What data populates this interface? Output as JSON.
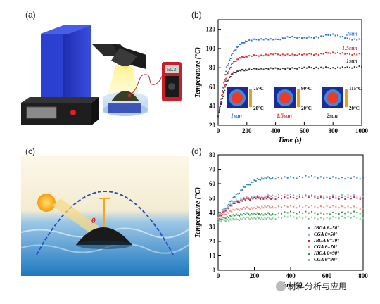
{
  "panel_labels": {
    "a": "(a)",
    "b": "(b)",
    "c": "(c)",
    "d": "(d)"
  },
  "illustration_a": {
    "meter_reading": "50.3"
  },
  "illustration_c": {
    "angle_symbol": "θ"
  },
  "watermark": "材料分析与应用",
  "chart_data": [
    {
      "type": "scatter",
      "title": "",
      "xlabel": "Time (s)",
      "ylabel": "Temperature (°C)",
      "xlim": [
        0,
        1000
      ],
      "ylim": [
        20,
        130
      ],
      "xticks": [
        0,
        200,
        400,
        600,
        800,
        1000
      ],
      "yticks": [
        20,
        40,
        60,
        80,
        100,
        120
      ],
      "series": [
        {
          "name": "2sun",
          "color": "#2f74d0",
          "x": [
            0,
            30,
            60,
            100,
            150,
            200,
            300,
            400,
            500,
            600,
            700,
            800,
            900,
            1000
          ],
          "y": [
            30,
            56,
            80,
            95,
            104,
            108,
            110,
            109,
            112,
            111,
            112,
            115,
            110,
            109
          ]
        },
        {
          "name": "1.5sun",
          "color": "#e0312f",
          "x": [
            0,
            30,
            60,
            100,
            150,
            200,
            300,
            400,
            500,
            600,
            700,
            800,
            900,
            1000
          ],
          "y": [
            30,
            52,
            72,
            85,
            90,
            92,
            93,
            94,
            93,
            94,
            94,
            96,
            94,
            94
          ]
        },
        {
          "name": "1sun",
          "color": "#333333",
          "x": [
            0,
            30,
            60,
            100,
            150,
            200,
            300,
            400,
            500,
            600,
            700,
            800,
            900,
            1000
          ],
          "y": [
            30,
            48,
            65,
            74,
            77,
            78,
            79,
            79,
            79,
            80,
            80,
            80,
            80,
            81
          ]
        }
      ],
      "insets": [
        {
          "label": "1sun",
          "max": "75°C",
          "min": "20°C",
          "label_color": "#2f74d0"
        },
        {
          "label": "1.5sun",
          "max": "90°C",
          "min": "20°C",
          "label_color": "#e0312f"
        },
        {
          "label": "2sun",
          "max": "115°C",
          "min": "20°C",
          "label_color": "#333333"
        }
      ]
    },
    {
      "type": "scatter",
      "title": "",
      "xlabel": "Time (s)",
      "ylabel": "Temperature (°C)",
      "xlim": [
        0,
        800
      ],
      "ylim": [
        0,
        80
      ],
      "xticks": [
        0,
        200,
        400,
        600,
        800
      ],
      "yticks": [
        0,
        10,
        20,
        30,
        40,
        50,
        60,
        70,
        80
      ],
      "legend_position": "bottom-right",
      "series": [
        {
          "name": "IBGA  θ=50°",
          "color": "#2a86a8",
          "x": [
            0,
            50,
            100,
            150,
            200,
            250,
            300,
            400,
            500,
            600,
            700,
            800
          ],
          "y": [
            37,
            45,
            52,
            58,
            62,
            64,
            64,
            64,
            65,
            64,
            64,
            64
          ]
        },
        {
          "name": "CGA  θ=50°",
          "color": "#9ab0cc",
          "x": [
            0,
            50,
            100,
            150,
            200,
            250,
            300,
            400,
            500,
            600,
            700,
            800
          ],
          "y": [
            37,
            44,
            48,
            50,
            51,
            51,
            52,
            52,
            52,
            51,
            52,
            51
          ]
        },
        {
          "name": "IBGA  θ=70°",
          "color": "#c0283e",
          "x": [
            0,
            50,
            100,
            150,
            200,
            250,
            300,
            400,
            500,
            600,
            700,
            800
          ],
          "y": [
            36,
            43,
            47,
            49,
            50,
            50,
            50,
            50,
            51,
            50,
            50,
            50
          ]
        },
        {
          "name": "CGA  θ=70°",
          "color": "#f08a80",
          "x": [
            0,
            50,
            100,
            150,
            200,
            250,
            300,
            400,
            500,
            600,
            700,
            800
          ],
          "y": [
            36,
            40,
            42,
            43,
            43,
            44,
            44,
            44,
            44,
            44,
            44,
            43
          ]
        },
        {
          "name": "IBGA  θ=90°",
          "color": "#2e9a4a",
          "x": [
            0,
            50,
            100,
            150,
            200,
            250,
            300,
            400,
            500,
            600,
            700,
            800
          ],
          "y": [
            35,
            37,
            38,
            39,
            39,
            39,
            39,
            40,
            40,
            39,
            40,
            40
          ]
        },
        {
          "name": "CGA  θ=90°",
          "color": "#7cc48e",
          "x": [
            0,
            50,
            100,
            150,
            200,
            250,
            300,
            400,
            500,
            600,
            700,
            800
          ],
          "y": [
            34,
            35,
            35,
            36,
            36,
            36,
            36,
            37,
            36,
            36,
            37,
            36
          ]
        }
      ]
    }
  ]
}
